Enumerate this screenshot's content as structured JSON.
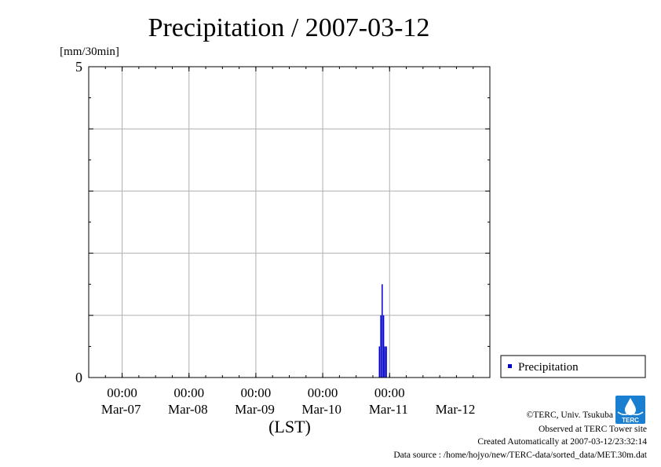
{
  "chart_data": {
    "type": "bar",
    "title": "Precipitation / 2007-03-12",
    "ylabel": "[mm/30min]",
    "xlabel": "(LST)",
    "ylim": [
      0,
      5
    ],
    "y_ticks": [
      "0",
      "5"
    ],
    "grid": true,
    "legend_position": "right",
    "x_time_labels": [
      "00:00",
      "00:00",
      "00:00",
      "00:00",
      "00:00"
    ],
    "x_date_labels": [
      "Mar-07",
      "Mar-08",
      "Mar-09",
      "Mar-10",
      "Mar-11",
      "Mar-12"
    ],
    "series": [
      {
        "name": "Precipitation",
        "color": "#0000cc",
        "points": [
          {
            "t": "2007-03-10 20:30",
            "value": 0.5
          },
          {
            "t": "2007-03-10 21:00",
            "value": 1.0
          },
          {
            "t": "2007-03-10 21:30",
            "value": 1.5
          },
          {
            "t": "2007-03-10 22:00",
            "value": 1.0
          },
          {
            "t": "2007-03-10 22:30",
            "value": 0.5
          },
          {
            "t": "2007-03-10 23:00",
            "value": 0.5
          }
        ]
      }
    ]
  },
  "credits": {
    "copyright": "©TERC, Univ. Tsukuba",
    "observed": "Observed at TERC Tower site",
    "created": "Created Automatically at 2007-03-12/23:32:14",
    "source": "Data source : /home/hojyo/new/TERC-data/sorted_data/MET.30m.dat",
    "logo_text": "TERC"
  }
}
